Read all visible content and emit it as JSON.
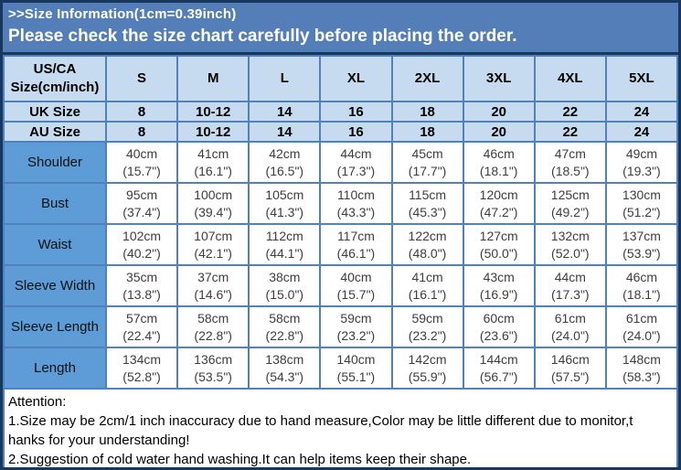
{
  "header": {
    "title": ">>Size Information(1cm=0.39inch)",
    "subtitle": "Please check the size chart carefully before placing the order."
  },
  "table": {
    "corner_line1": "US/CA",
    "corner_line2": "Size(cm/inch)",
    "size_headers": [
      "S",
      "M",
      "L",
      "XL",
      "2XL",
      "3XL",
      "4XL",
      "5XL"
    ],
    "size_rows": [
      {
        "label": "UK Size",
        "values": [
          "8",
          "10-12",
          "14",
          "16",
          "18",
          "20",
          "22",
          "24"
        ]
      },
      {
        "label": "AU Size",
        "values": [
          "8",
          "10-12",
          "14",
          "16",
          "18",
          "20",
          "22",
          "24"
        ]
      }
    ],
    "measurement_rows": [
      {
        "label": "Shoulder",
        "cells": [
          {
            "cm": "40cm",
            "in": "(15.7\")"
          },
          {
            "cm": "41cm",
            "in": "(16.1\")"
          },
          {
            "cm": "42cm",
            "in": "(16.5\")"
          },
          {
            "cm": "44cm",
            "in": "(17.3\")"
          },
          {
            "cm": "45cm",
            "in": "(17.7\")"
          },
          {
            "cm": "46cm",
            "in": "(18.1\")"
          },
          {
            "cm": "47cm",
            "in": "(18.5\")"
          },
          {
            "cm": "49cm",
            "in": "(19.3\")"
          }
        ]
      },
      {
        "label": "Bust",
        "cells": [
          {
            "cm": "95cm",
            "in": "(37.4\")"
          },
          {
            "cm": "100cm",
            "in": "(39.4\")"
          },
          {
            "cm": "105cm",
            "in": "(41.3\")"
          },
          {
            "cm": "110cm",
            "in": "(43.3\")"
          },
          {
            "cm": "115cm",
            "in": "(45.3\")"
          },
          {
            "cm": "120cm",
            "in": "(47.2\")"
          },
          {
            "cm": "125cm",
            "in": "(49.2\")"
          },
          {
            "cm": "130cm",
            "in": "(51.2\")"
          }
        ]
      },
      {
        "label": "Waist",
        "cells": [
          {
            "cm": "102cm",
            "in": "(40.2\")"
          },
          {
            "cm": "107cm",
            "in": "(42.1\")"
          },
          {
            "cm": "112cm",
            "in": "(44.1\")"
          },
          {
            "cm": "117cm",
            "in": "(46.1\")"
          },
          {
            "cm": "122cm",
            "in": "(48.0\")"
          },
          {
            "cm": "127cm",
            "in": "(50.0\")"
          },
          {
            "cm": "132cm",
            "in": "(52.0\")"
          },
          {
            "cm": "137cm",
            "in": "(53.9\")"
          }
        ]
      },
      {
        "label": "Sleeve Width",
        "cells": [
          {
            "cm": "35cm",
            "in": "(13.8\")"
          },
          {
            "cm": "37cm",
            "in": "(14.6\")"
          },
          {
            "cm": "38cm",
            "in": "(15.0\")"
          },
          {
            "cm": "40cm",
            "in": "(15.7\")"
          },
          {
            "cm": "41cm",
            "in": "(16.1\")"
          },
          {
            "cm": "43cm",
            "in": "(16.9\")"
          },
          {
            "cm": "44cm",
            "in": "(17.3\")"
          },
          {
            "cm": "46cm",
            "in": "(18.1\")"
          }
        ]
      },
      {
        "label": "Sleeve Length",
        "cells": [
          {
            "cm": "57cm",
            "in": "(22.4\")"
          },
          {
            "cm": "58cm",
            "in": "(22.8\")"
          },
          {
            "cm": "58cm",
            "in": "(22.8\")"
          },
          {
            "cm": "59cm",
            "in": "(23.2\")"
          },
          {
            "cm": "59cm",
            "in": "(23.2\")"
          },
          {
            "cm": "60cm",
            "in": "(23.6\")"
          },
          {
            "cm": "61cm",
            "in": "(24.0\")"
          },
          {
            "cm": "61cm",
            "in": "(24.0\")"
          }
        ]
      },
      {
        "label": "Length",
        "cells": [
          {
            "cm": "134cm",
            "in": "(52.8\")"
          },
          {
            "cm": "136cm",
            "in": "(53.5\")"
          },
          {
            "cm": "138cm",
            "in": "(54.3\")"
          },
          {
            "cm": "140cm",
            "in": "(55.1\")"
          },
          {
            "cm": "142cm",
            "in": "(55.9\")"
          },
          {
            "cm": "144cm",
            "in": "(56.7\")"
          },
          {
            "cm": "146cm",
            "in": "(57.5\")"
          },
          {
            "cm": "148cm",
            "in": "(58.3\")"
          }
        ]
      }
    ]
  },
  "attention": {
    "lines": [
      "Attention:",
      "1.Size may be 2cm/1 inch inaccuracy due to hand measure,Color may be little different due to monitor,t",
      "hanks for your understanding!",
      "2.Suggestion of cold water hand washing.It can help items keep their shape."
    ]
  },
  "colors": {
    "banner_blue": "#537eb7",
    "header_light_blue": "#c6dbf0",
    "label_blue": "#5d9cd6",
    "grid_blue": "#4f81bd",
    "frame_navy": "#17375d"
  }
}
